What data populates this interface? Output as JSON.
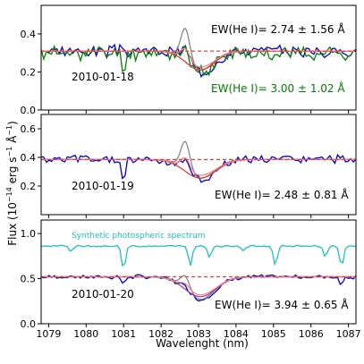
{
  "figure": {
    "ylabel": "Flux (10$^{-14}$ erg s$^{-1}$ Å$^{-1}$)",
    "ylabel_main": "Flux (10",
    "ylabel_exp1": "−14",
    "ylabel_mid": " erg s",
    "ylabel_exp2": "−1",
    "ylabel_mid2": " Å",
    "ylabel_exp3": "−1",
    "ylabel_end": ")",
    "xlabel": "Wavelenght (nm)"
  },
  "colors": {
    "blue": "#0000cc",
    "green": "#008000",
    "grey": "#808080",
    "red": "#e03030",
    "pink": "#f08080",
    "purple": "#9b3c8c",
    "cyan": "#20c0c0",
    "dashed_red": "#e04040"
  },
  "chart_data": [
    {
      "type": "line",
      "panel": "top",
      "date": "2010-01-18",
      "xlim": [
        1078.8,
        1087.2
      ],
      "ylim": [
        0.0,
        0.55
      ],
      "yticks": [
        "0.0",
        "0.2",
        "0.4"
      ],
      "ytick_values": [
        0.0,
        0.2,
        0.4
      ],
      "annotations": [
        {
          "text": "EW(He I)= 2.74 ±  1.56 Å",
          "color": "#000000"
        },
        {
          "text": "EW(He I)= 3.00 ±  1.02 Å",
          "color": "#008000"
        }
      ],
      "continuum": 0.31,
      "series": [
        {
          "color": "blue",
          "base": 0.31,
          "noise": 0.025,
          "absorption": {
            "center": 1083.05,
            "depth": 0.11,
            "width": 0.35
          },
          "emission": {
            "center": 1082.65,
            "height": 0.07,
            "width": 0.12
          },
          "seed": 3
        },
        {
          "color": "green",
          "base": 0.3,
          "noise": 0.03,
          "absorption": {
            "center": 1083.05,
            "depth": 0.1,
            "width": 0.35
          },
          "emission": {
            "center": 1082.6,
            "height": 0.06,
            "width": 0.12
          },
          "seed": 11,
          "dips": [
            {
              "center": 1081.0,
              "depth": 0.09,
              "width": 0.05
            }
          ]
        },
        {
          "color": "grey",
          "base": 0.31,
          "noise": 0,
          "absorption": {
            "center": 1083.05,
            "depth": 0.1,
            "width": 0.35
          },
          "emission": {
            "center": 1082.65,
            "height": 0.17,
            "width": 0.12
          }
        },
        {
          "color": "red",
          "base": 0.31,
          "noise": 0,
          "absorption": {
            "center": 1083.05,
            "depth": 0.1,
            "width": 0.38
          }
        },
        {
          "color": "pink",
          "base": 0.31,
          "noise": 0,
          "absorption": {
            "center": 1083.05,
            "depth": 0.085,
            "width": 0.38
          },
          "emission": {
            "center": 1082.65,
            "height": 0.06,
            "width": 0.12
          }
        },
        {
          "color": "dashed_red",
          "dashed": true,
          "base": 0.31
        }
      ]
    },
    {
      "type": "line",
      "panel": "middle",
      "date": "2010-01-19",
      "xlim": [
        1078.8,
        1087.2
      ],
      "ylim": [
        0.0,
        0.7
      ],
      "yticks": [
        "0.2",
        "0.4",
        "0.6"
      ],
      "ytick_values": [
        0.2,
        0.4,
        0.6
      ],
      "annotations": [
        {
          "text": "EW(He I)= 2.48 ±  0.81 Å",
          "color": "#000000"
        }
      ],
      "continuum": 0.385,
      "series": [
        {
          "color": "blue",
          "base": 0.385,
          "noise": 0.025,
          "absorption": {
            "center": 1083.05,
            "depth": 0.14,
            "width": 0.4
          },
          "emission": {
            "center": 1082.65,
            "height": 0.08,
            "width": 0.12
          },
          "seed": 5,
          "dips": [
            {
              "center": 1081.0,
              "depth": 0.2,
              "width": 0.04
            }
          ]
        },
        {
          "color": "grey",
          "base": 0.385,
          "noise": 0,
          "absorption": {
            "center": 1083.05,
            "depth": 0.13,
            "width": 0.38
          },
          "emission": {
            "center": 1082.65,
            "height": 0.2,
            "width": 0.12
          }
        },
        {
          "color": "red",
          "base": 0.385,
          "noise": 0,
          "absorption": {
            "center": 1083.05,
            "depth": 0.13,
            "width": 0.42
          }
        },
        {
          "color": "pink",
          "base": 0.385,
          "noise": 0,
          "absorption": {
            "center": 1083.05,
            "depth": 0.11,
            "width": 0.42
          },
          "emission": {
            "center": 1082.65,
            "height": 0.08,
            "width": 0.12
          }
        },
        {
          "color": "dashed_red",
          "dashed": true,
          "base": 0.385
        }
      ]
    },
    {
      "type": "line",
      "panel": "bottom",
      "date": "2010-01-20",
      "xlim": [
        1078.8,
        1087.2
      ],
      "ylim": [
        0.0,
        1.15
      ],
      "yticks": [
        "0.0",
        "0.5",
        "1.0"
      ],
      "ytick_values": [
        0.0,
        0.5,
        1.0
      ],
      "xticks": [
        "1079",
        "1080",
        "1081",
        "1082",
        "1083",
        "1084",
        "1085",
        "1086",
        "1087"
      ],
      "xtick_values": [
        1079,
        1080,
        1081,
        1082,
        1083,
        1084,
        1085,
        1086,
        1087
      ],
      "annotations": [
        {
          "text": "EW(He I)= 3.94 ±  0.65 Å",
          "color": "#000000"
        },
        {
          "text": "Synthetic photospheric spectrum",
          "color": "#20c0c0"
        }
      ],
      "continuum": 0.52,
      "series": [
        {
          "color": "cyan",
          "base": 0.86,
          "noise": 0.008,
          "seed": 9,
          "dips": [
            {
              "center": 1081.0,
              "depth": 0.25,
              "width": 0.05
            },
            {
              "center": 1082.78,
              "depth": 0.22,
              "width": 0.05
            },
            {
              "center": 1083.3,
              "depth": 0.12,
              "width": 0.05
            },
            {
              "center": 1085.05,
              "depth": 0.22,
              "width": 0.05
            },
            {
              "center": 1086.38,
              "depth": 0.12,
              "width": 0.05
            },
            {
              "center": 1086.82,
              "depth": 0.22,
              "width": 0.05
            },
            {
              "center": 1079.6,
              "depth": 0.06,
              "width": 0.05
            },
            {
              "center": 1084.2,
              "depth": 0.05,
              "width": 0.05
            }
          ]
        },
        {
          "color": "blue",
          "base": 0.52,
          "noise": 0.018,
          "absorption": {
            "center": 1083.05,
            "depth": 0.25,
            "width": 0.4
          },
          "emission": {
            "center": 1082.65,
            "height": 0.05,
            "width": 0.12
          },
          "seed": 7,
          "dips": [
            {
              "center": 1081.0,
              "depth": 0.08,
              "width": 0.05
            },
            {
              "center": 1086.82,
              "depth": 0.08,
              "width": 0.05
            }
          ]
        },
        {
          "color": "grey",
          "base": 0.52,
          "noise": 0,
          "absorption": {
            "center": 1083.05,
            "depth": 0.25,
            "width": 0.38
          },
          "emission": {
            "center": 1082.65,
            "height": 0.15,
            "width": 0.12
          }
        },
        {
          "color": "purple",
          "base": 0.52,
          "noise": 0,
          "absorption": {
            "center": 1083.05,
            "depth": 0.22,
            "width": 0.42
          }
        },
        {
          "color": "pink",
          "base": 0.52,
          "noise": 0,
          "absorption": {
            "center": 1083.05,
            "depth": 0.2,
            "width": 0.42
          },
          "emission": {
            "center": 1082.65,
            "height": 0.05,
            "width": 0.12
          }
        },
        {
          "color": "dashed_red",
          "dashed": true,
          "base": 0.52
        }
      ]
    }
  ]
}
